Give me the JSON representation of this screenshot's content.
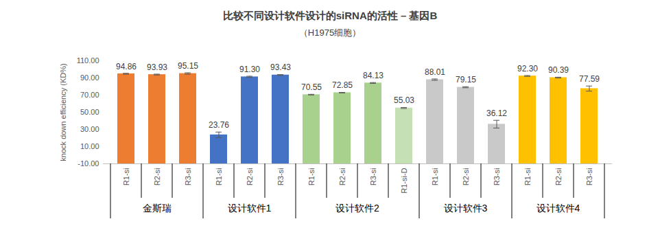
{
  "chart_data": {
    "type": "bar",
    "title": "比较不同设计软件设计的siRNA的活性 – 基因B",
    "subtitle": "（H1975细胞）",
    "ylabel": "knock down efficiency (KD%)",
    "ylim": [
      -10,
      110
    ],
    "yticks": [
      {
        "value": -10,
        "label": "-10.00"
      },
      {
        "value": 10,
        "label": "10.00"
      },
      {
        "value": 30,
        "label": "30.00"
      },
      {
        "value": 50,
        "label": "50.00"
      },
      {
        "value": 70,
        "label": "70.00"
      },
      {
        "value": 90,
        "label": "90.00"
      },
      {
        "value": 110,
        "label": "110.00"
      }
    ],
    "grid": false,
    "data_labels": true,
    "groups": [
      {
        "name": "金斯瑞",
        "categories": [
          "R1-si",
          "R2-si",
          "R3-si"
        ],
        "values": [
          94.86,
          93.93,
          95.15
        ],
        "value_labels": [
          "94.86",
          "93.93",
          "95.15"
        ],
        "errors": [
          0.6,
          0.5,
          0.8
        ],
        "colors": [
          "#ED7D31",
          "#ED7D31",
          "#ED7D31"
        ]
      },
      {
        "name": "设计软件1",
        "categories": [
          "R1-si",
          "R2-si",
          "R3-si"
        ],
        "values": [
          23.76,
          91.3,
          93.43
        ],
        "value_labels": [
          "23.76",
          "91.30",
          "93.43"
        ],
        "errors": [
          3.2,
          0.7,
          0.5
        ],
        "colors": [
          "#4472C4",
          "#4472C4",
          "#4472C4"
        ]
      },
      {
        "name": "设计软件2",
        "categories": [
          "R1-si",
          "R2-si",
          "R3-si",
          "R1-si-D"
        ],
        "values": [
          70.55,
          72.85,
          84.13,
          55.03
        ],
        "value_labels": [
          "70.55",
          "72.85",
          "84.13",
          "55.03"
        ],
        "errors": [
          0.4,
          0.3,
          0.5,
          0.6
        ],
        "colors": [
          "#A9D18E",
          "#A9D18E",
          "#A9D18E",
          "#C5E0B4"
        ]
      },
      {
        "name": "设计软件3",
        "categories": [
          "R1-si",
          "R2-si",
          "R3-si"
        ],
        "values": [
          88.01,
          79.15,
          36.12
        ],
        "value_labels": [
          "88.01",
          "79.15",
          "36.12"
        ],
        "errors": [
          0.8,
          0.6,
          4.5
        ],
        "colors": [
          "#C9C9C9",
          "#C9C9C9",
          "#C9C9C9"
        ]
      },
      {
        "name": "设计软件4",
        "categories": [
          "R1-si",
          "R2-si",
          "R3-si"
        ],
        "values": [
          92.3,
          90.39,
          77.59
        ],
        "value_labels": [
          "92.30",
          "90.39",
          "77.59"
        ],
        "errors": [
          0.5,
          0.5,
          3.0
        ],
        "colors": [
          "#FFC000",
          "#FFC000",
          "#FFC000"
        ]
      }
    ]
  }
}
